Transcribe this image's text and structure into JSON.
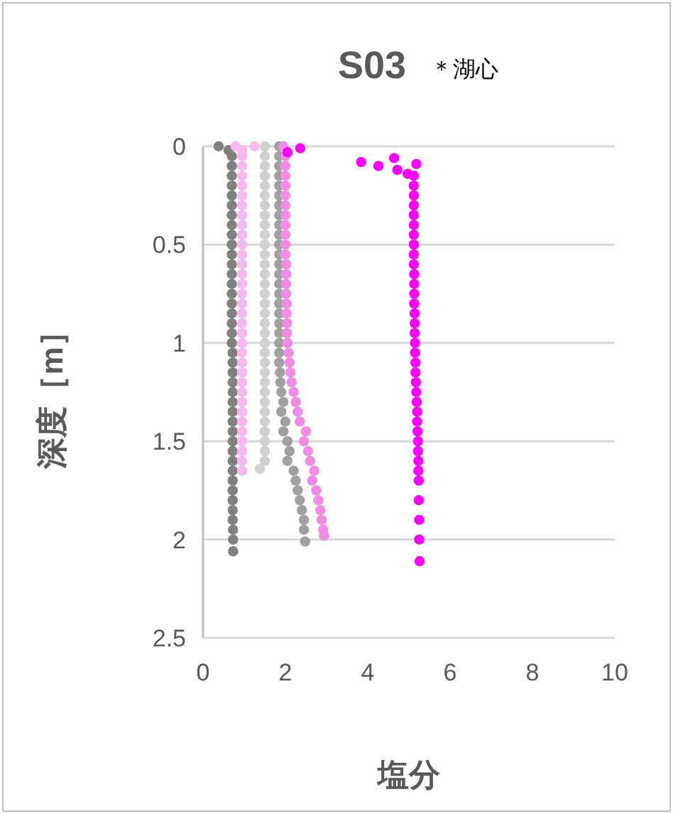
{
  "chart_data": {
    "type": "scatter",
    "title": "S03",
    "annotations": [
      "＊湖心"
    ],
    "xlabel": "塩分",
    "ylabel": "深度［m］",
    "xlim": [
      0,
      10
    ],
    "xticks": [
      0,
      2,
      4,
      6,
      8,
      10
    ],
    "ylim": [
      2.5,
      0
    ],
    "yticks": [
      0,
      0.5,
      1,
      1.5,
      2,
      2.5
    ],
    "grid": "y",
    "marker": "circle",
    "series": [
      {
        "color": "#808080",
        "x": [
          0.38,
          0.62,
          0.7,
          0.7,
          0.7,
          0.7,
          0.7,
          0.7,
          0.7,
          0.7,
          0.7,
          0.7,
          0.7,
          0.7,
          0.7,
          0.7,
          0.7,
          0.7,
          0.7,
          0.7,
          0.7,
          0.7,
          0.72,
          0.72,
          0.72,
          0.72,
          0.72,
          0.72,
          0.72,
          0.72,
          0.72,
          0.72,
          0.72,
          0.72,
          0.72,
          0.72,
          0.72,
          0.72,
          0.72,
          0.72,
          0.73,
          0.73,
          0.73
        ],
        "values": [
          0,
          0.02,
          0.05,
          0.1,
          0.15,
          0.2,
          0.25,
          0.3,
          0.35,
          0.4,
          0.45,
          0.5,
          0.55,
          0.6,
          0.65,
          0.7,
          0.75,
          0.8,
          0.85,
          0.9,
          0.95,
          1,
          1.05,
          1.1,
          1.15,
          1.2,
          1.25,
          1.3,
          1.35,
          1.4,
          1.45,
          1.5,
          1.55,
          1.6,
          1.65,
          1.7,
          1.75,
          1.8,
          1.85,
          1.9,
          1.95,
          2,
          2.06
        ]
      },
      {
        "color": "#f7b8ec",
        "x": [
          0.79,
          1.25,
          0.95,
          0.95,
          0.95,
          0.95,
          0.95,
          0.95,
          0.95,
          0.95,
          0.95,
          0.95,
          0.95,
          0.95,
          0.95,
          0.95,
          0.95,
          0.95,
          0.95,
          0.95,
          0.95,
          0.95,
          0.95,
          0.95,
          0.95,
          0.95,
          0.95,
          0.95,
          0.95,
          0.95,
          0.95,
          0.95,
          0.95,
          0.95,
          0.95,
          0.95
        ],
        "values": [
          0,
          0,
          0.02,
          0.05,
          0.1,
          0.15,
          0.2,
          0.25,
          0.3,
          0.35,
          0.4,
          0.45,
          0.5,
          0.55,
          0.6,
          0.65,
          0.7,
          0.75,
          0.8,
          0.85,
          0.9,
          0.95,
          1,
          1.05,
          1.1,
          1.15,
          1.2,
          1.25,
          1.3,
          1.35,
          1.4,
          1.45,
          1.5,
          1.55,
          1.6,
          1.65
        ]
      },
      {
        "color": "#d0d0d0",
        "x": [
          1.5,
          1.5,
          1.5,
          1.5,
          1.5,
          1.5,
          1.5,
          1.5,
          1.5,
          1.5,
          1.5,
          1.5,
          1.5,
          1.5,
          1.5,
          1.5,
          1.5,
          1.5,
          1.5,
          1.5,
          1.5,
          1.5,
          1.5,
          1.5,
          1.5,
          1.5,
          1.5,
          1.5,
          1.5,
          1.5,
          1.5,
          1.5,
          1.5,
          1.38
        ],
        "values": [
          0,
          0.05,
          0.1,
          0.15,
          0.2,
          0.25,
          0.3,
          0.35,
          0.4,
          0.45,
          0.5,
          0.55,
          0.6,
          0.65,
          0.7,
          0.75,
          0.8,
          0.85,
          0.9,
          0.95,
          1,
          1.05,
          1.1,
          1.15,
          1.2,
          1.25,
          1.3,
          1.35,
          1.4,
          1.45,
          1.5,
          1.55,
          1.6,
          1.64
        ]
      },
      {
        "color": "#a0a0a0",
        "x": [
          1.85,
          1.85,
          1.85,
          1.85,
          1.85,
          1.85,
          1.85,
          1.85,
          1.85,
          1.85,
          1.85,
          1.85,
          1.85,
          1.85,
          1.85,
          1.85,
          1.85,
          1.85,
          1.85,
          1.85,
          1.85,
          1.85,
          1.85,
          1.87,
          1.88,
          1.9,
          1.95,
          1.9,
          2,
          1.95,
          2.05,
          2.1,
          2.05,
          2.2,
          2.25,
          2.3,
          2.35,
          2.4,
          2.45,
          2.45,
          2.48
        ],
        "values": [
          0,
          0.05,
          0.1,
          0.15,
          0.2,
          0.25,
          0.3,
          0.35,
          0.4,
          0.45,
          0.5,
          0.55,
          0.6,
          0.65,
          0.7,
          0.75,
          0.8,
          0.85,
          0.9,
          0.95,
          1,
          1.05,
          1.1,
          1.15,
          1.2,
          1.25,
          1.3,
          1.35,
          1.4,
          1.45,
          1.5,
          1.55,
          1.6,
          1.65,
          1.7,
          1.75,
          1.8,
          1.85,
          1.9,
          1.95,
          2.01
        ]
      },
      {
        "color": "#f08ce6",
        "x": [
          1.95,
          2,
          2,
          2,
          2,
          2,
          2,
          2,
          2,
          2,
          2,
          2,
          2.02,
          2.02,
          2.02,
          2.02,
          2.03,
          2.03,
          2.04,
          2.04,
          2.05,
          2.08,
          2.1,
          2.12,
          2.15,
          2.2,
          2.25,
          2.3,
          2.35,
          2.5,
          2.45,
          2.55,
          2.6,
          2.7,
          2.65,
          2.75,
          2.8,
          2.85,
          2.88,
          2.92,
          2.94
        ],
        "values": [
          0,
          0.05,
          0.1,
          0.15,
          0.2,
          0.25,
          0.3,
          0.35,
          0.4,
          0.45,
          0.5,
          0.55,
          0.6,
          0.65,
          0.7,
          0.75,
          0.8,
          0.85,
          0.9,
          0.95,
          1,
          1.05,
          1.1,
          1.15,
          1.2,
          1.25,
          1.3,
          1.35,
          1.4,
          1.45,
          1.5,
          1.55,
          1.6,
          1.65,
          1.7,
          1.75,
          1.8,
          1.85,
          1.9,
          1.95,
          1.98
        ]
      },
      {
        "color": "#ff00ff",
        "x": [
          2.05,
          2.36,
          3.84,
          4.26,
          4.64,
          4.72,
          4.97,
          5.18,
          5.12,
          5.12,
          5.12,
          5.12,
          5.12,
          5.12,
          5.12,
          5.12,
          5.12,
          5.12,
          5.13,
          5.13,
          5.13,
          5.13,
          5.14,
          5.14,
          5.14,
          5.15,
          5.15,
          5.16,
          5.16,
          5.17,
          5.18,
          5.19,
          5.2,
          5.2,
          5.21,
          5.22,
          5.22,
          5.23,
          5.23,
          5.24,
          5.24,
          5.25,
          5.25,
          5.26
        ],
        "values": [
          0.03,
          0.01,
          0.08,
          0.1,
          0.06,
          0.12,
          0.14,
          0.09,
          0.15,
          0.2,
          0.25,
          0.3,
          0.35,
          0.4,
          0.45,
          0.5,
          0.55,
          0.6,
          0.65,
          0.7,
          0.75,
          0.8,
          0.85,
          0.9,
          0.95,
          1,
          1.05,
          1.1,
          1.15,
          1.2,
          1.25,
          1.3,
          1.35,
          1.4,
          1.45,
          1.5,
          1.55,
          1.6,
          1.65,
          1.7,
          1.8,
          1.9,
          2,
          2.11
        ]
      }
    ]
  }
}
